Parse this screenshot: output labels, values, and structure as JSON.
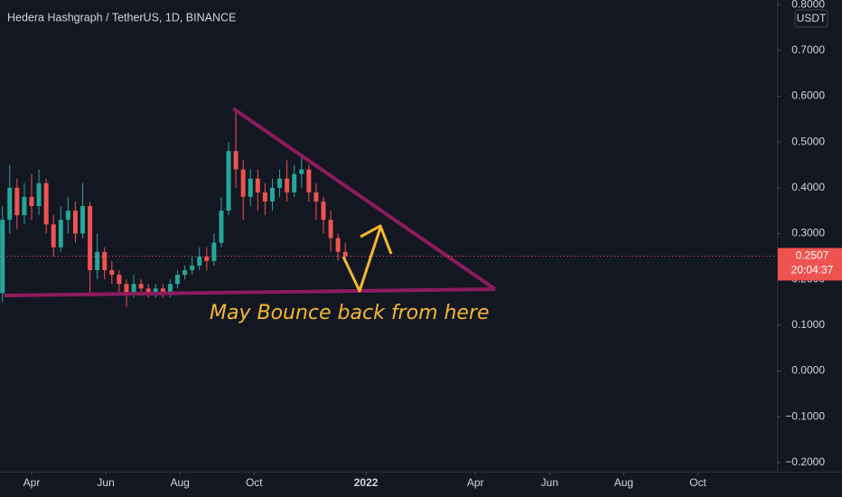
{
  "chart_data": {
    "type": "candlestick",
    "title": "Hedera Hashgraph / TetherUS, 1D, BINANCE",
    "currency": "USDT",
    "countdown": "20:04:37",
    "annotation": "May Bounce back from here",
    "up_color": "#26a69a",
    "down_color": "#ef5350",
    "x": [
      66,
      72,
      78,
      84,
      90,
      96,
      102,
      108,
      114,
      120,
      126,
      132,
      138,
      144,
      150,
      156,
      162,
      168,
      174,
      180,
      186,
      192,
      198,
      204,
      210,
      216,
      222,
      228,
      234,
      240,
      246,
      252,
      258,
      264,
      270,
      276,
      282,
      288,
      294,
      300,
      306,
      312,
      318,
      324,
      330,
      336,
      342,
      348
    ],
    "open": [
      0.17,
      0.33,
      0.4,
      0.34,
      0.38,
      0.36,
      0.41,
      0.32,
      0.27,
      0.33,
      0.35,
      0.3,
      0.36,
      0.22,
      0.26,
      0.22,
      0.21,
      0.19,
      0.17,
      0.19,
      0.18,
      0.17,
      0.18,
      0.17,
      0.19,
      0.21,
      0.22,
      0.23,
      0.25,
      0.24,
      0.28,
      0.35,
      0.48,
      0.44,
      0.38,
      0.42,
      0.39,
      0.37,
      0.4,
      0.42,
      0.39,
      0.43,
      0.44,
      0.39,
      0.37,
      0.33,
      0.29,
      0.26
    ],
    "high": [
      0.36,
      0.45,
      0.42,
      0.41,
      0.43,
      0.44,
      0.42,
      0.34,
      0.36,
      0.38,
      0.37,
      0.41,
      0.37,
      0.3,
      0.27,
      0.24,
      0.22,
      0.2,
      0.21,
      0.2,
      0.19,
      0.19,
      0.19,
      0.2,
      0.22,
      0.23,
      0.25,
      0.27,
      0.27,
      0.3,
      0.38,
      0.5,
      0.57,
      0.46,
      0.44,
      0.44,
      0.41,
      0.42,
      0.44,
      0.46,
      0.45,
      0.47,
      0.45,
      0.41,
      0.38,
      0.35,
      0.3,
      0.28
    ],
    "low": [
      0.15,
      0.3,
      0.31,
      0.32,
      0.33,
      0.34,
      0.3,
      0.25,
      0.26,
      0.3,
      0.28,
      0.29,
      0.17,
      0.2,
      0.2,
      0.19,
      0.17,
      0.14,
      0.16,
      0.17,
      0.16,
      0.16,
      0.16,
      0.16,
      0.18,
      0.2,
      0.21,
      0.22,
      0.22,
      0.23,
      0.27,
      0.34,
      0.4,
      0.33,
      0.36,
      0.35,
      0.34,
      0.35,
      0.38,
      0.37,
      0.38,
      0.4,
      0.37,
      0.33,
      0.3,
      0.26,
      0.24,
      0.24
    ],
    "close": [
      0.33,
      0.4,
      0.34,
      0.38,
      0.36,
      0.41,
      0.32,
      0.27,
      0.33,
      0.35,
      0.3,
      0.36,
      0.22,
      0.26,
      0.22,
      0.21,
      0.19,
      0.17,
      0.19,
      0.18,
      0.17,
      0.18,
      0.17,
      0.19,
      0.21,
      0.22,
      0.23,
      0.25,
      0.24,
      0.28,
      0.35,
      0.48,
      0.44,
      0.38,
      0.42,
      0.39,
      0.37,
      0.4,
      0.42,
      0.39,
      0.43,
      0.44,
      0.39,
      0.37,
      0.33,
      0.29,
      0.26,
      0.2507
    ],
    "xlim": [
      64,
      703
    ],
    "ylim": [
      -0.22,
      0.81
    ],
    "yticks": [
      {
        "value": 0.8,
        "label": "0.8000"
      },
      {
        "value": 0.7,
        "label": "0.7000"
      },
      {
        "value": 0.6,
        "label": "0.6000"
      },
      {
        "value": 0.5,
        "label": "0.5000"
      },
      {
        "value": 0.4,
        "label": "0.4000"
      },
      {
        "value": 0.3,
        "label": "0.3000"
      },
      {
        "value": 0.2,
        "label": "0.2000"
      },
      {
        "value": 0.1,
        "label": "0.1000"
      },
      {
        "value": 0,
        "label": "0.0000"
      },
      {
        "value": -0.1,
        "label": "−0.1000"
      },
      {
        "value": -0.2,
        "label": "−0.2000"
      }
    ],
    "xticks": [
      {
        "value": 90,
        "label": "Apr"
      },
      {
        "value": 151,
        "label": "Jun"
      },
      {
        "value": 212,
        "label": "Aug"
      },
      {
        "value": 273,
        "label": "Oct"
      },
      {
        "value": 365,
        "label": "2022"
      },
      {
        "value": 455,
        "label": "Apr"
      },
      {
        "value": 516,
        "label": "Jun"
      },
      {
        "value": 577,
        "label": "Aug"
      },
      {
        "value": 638,
        "label": "Oct"
      }
    ],
    "grid": false
  }
}
